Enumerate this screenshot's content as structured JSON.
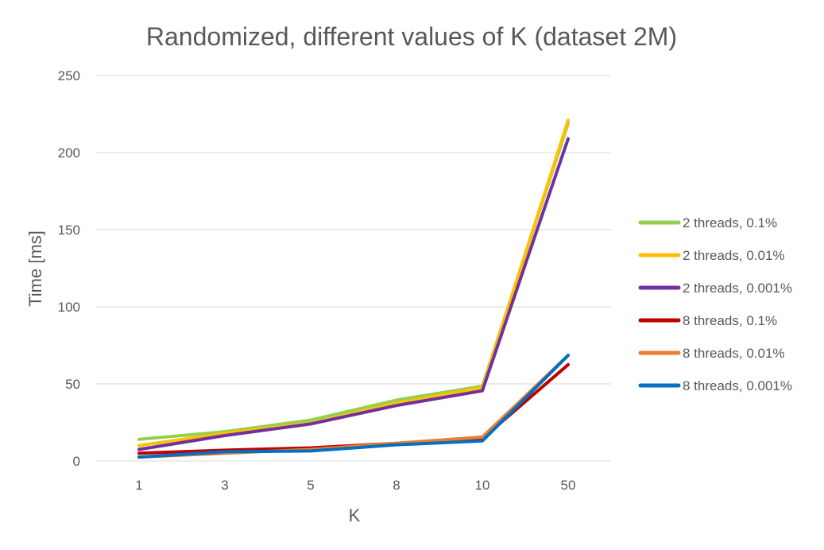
{
  "chart_data": {
    "type": "line",
    "title": "Randomized, different values of K (dataset 2M)",
    "xlabel": "K",
    "ylabel": "Time [ms]",
    "categories": [
      "1",
      "3",
      "5",
      "8",
      "10",
      "50"
    ],
    "ylim": [
      0,
      250
    ],
    "yticks": [
      0,
      50,
      100,
      150,
      200,
      250
    ],
    "grid": true,
    "legend_position": "right",
    "series": [
      {
        "name": "2 threads, 0.1%",
        "color": "#92d050",
        "values": [
          14,
          19,
          26.5,
          39.5,
          48.5,
          219
        ]
      },
      {
        "name": "2 threads, 0.01%",
        "color": "#ffc000",
        "values": [
          10,
          18,
          24.5,
          37.5,
          47.5,
          221
        ]
      },
      {
        "name": "2 threads, 0.001%",
        "color": "#7030a0",
        "values": [
          7.5,
          16.5,
          24,
          36,
          45.5,
          209
        ]
      },
      {
        "name": "8 threads, 0.1%",
        "color": "#c00000",
        "values": [
          5,
          7,
          8.5,
          11.5,
          14.5,
          62.5
        ]
      },
      {
        "name": "8 threads, 0.01%",
        "color": "#ed7d31",
        "values": [
          2.5,
          5,
          7.5,
          11.5,
          15.5,
          68.5
        ]
      },
      {
        "name": "8 threads, 0.001%",
        "color": "#0070c0",
        "values": [
          2.5,
          6,
          6.5,
          10.5,
          13,
          68.5
        ]
      }
    ]
  }
}
